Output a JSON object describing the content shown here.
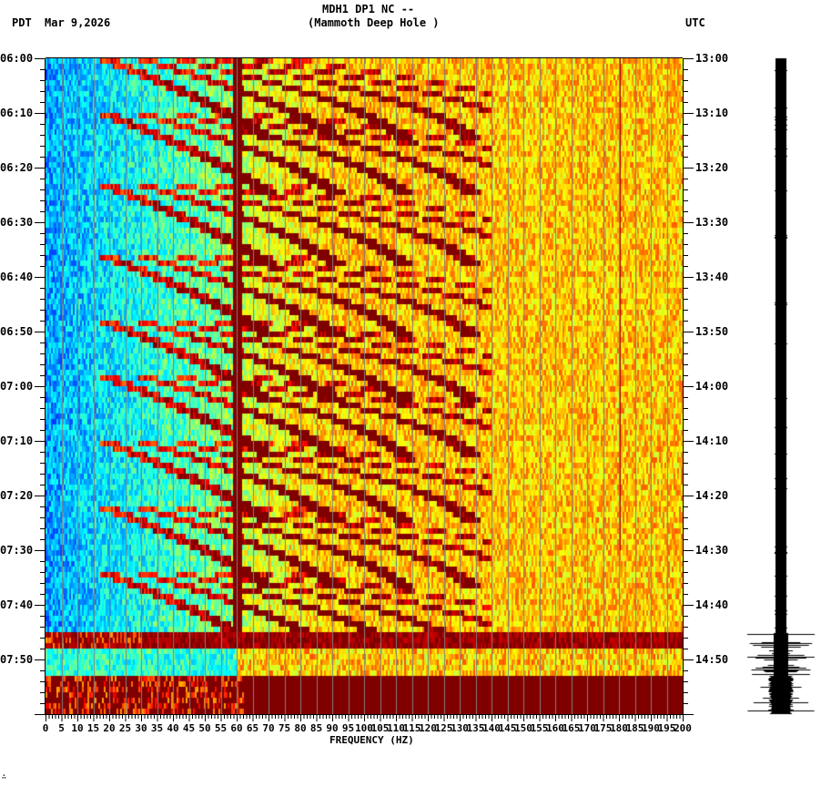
{
  "header": {
    "station": "MDH1 DP1 NC --",
    "location": "(Mammoth Deep Hole )",
    "left_tz": "PDT",
    "date": "Mar 9,2026",
    "right_tz": "UTC"
  },
  "footer_mark": "∴",
  "chart_data": {
    "type": "heatmap",
    "title": "MDH1 DP1 NC -- (Mammoth Deep Hole )",
    "subtitle": "Mar 9,2026",
    "xlabel": "FREQUENCY (HZ)",
    "ylabel_left": "PDT",
    "ylabel_right": "UTC",
    "xlim": [
      0,
      200
    ],
    "x_ticks": [
      0,
      5,
      10,
      15,
      20,
      25,
      30,
      35,
      40,
      45,
      50,
      55,
      60,
      65,
      70,
      75,
      80,
      85,
      90,
      95,
      100,
      105,
      110,
      115,
      120,
      125,
      130,
      135,
      140,
      145,
      150,
      155,
      160,
      165,
      170,
      175,
      180,
      185,
      190,
      195,
      200
    ],
    "y_ticks_left": [
      "06:00",
      "06:10",
      "06:20",
      "06:30",
      "06:40",
      "06:50",
      "07:00",
      "07:10",
      "07:20",
      "07:30",
      "07:40",
      "07:50"
    ],
    "y_ticks_right": [
      "13:00",
      "13:10",
      "13:20",
      "13:30",
      "13:40",
      "13:50",
      "14:00",
      "14:10",
      "14:20",
      "14:30",
      "14:40",
      "14:50"
    ],
    "time_span_minutes": 120,
    "minor_tick_minutes": 2,
    "grid": true,
    "grid_every_hz": 5,
    "colormap": "jet",
    "colors": {
      "low": "#0050ff",
      "mid": "#20f0e0",
      "midhigh": "#c0ff40",
      "high": "#ffff00",
      "sat": "#800000",
      "grid": "#808080"
    },
    "persistent_lines_hz": [
      60,
      180
    ],
    "chirp_events_start_minutes": [
      0,
      10,
      23,
      36,
      48,
      58,
      70,
      82,
      94
    ],
    "noise_burst_minutes": [
      [
        105,
        108
      ],
      [
        113,
        120
      ]
    ],
    "quiet_band_minutes": [
      [
        108,
        113
      ]
    ],
    "seismogram": {
      "position": "right",
      "quiet_until_minute": 105,
      "large_amplitude_from_minute": 113
    }
  }
}
